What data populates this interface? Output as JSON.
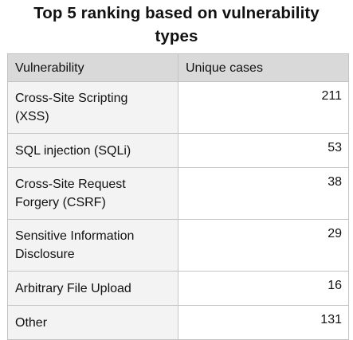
{
  "title_line1": "Top 5 ranking based on vulnerability",
  "title_line2": "types",
  "chart_data": {
    "type": "table",
    "title": "Top 5 ranking based on vulnerability types",
    "columns": [
      "Vulnerability",
      "Unique cases"
    ],
    "rows": [
      {
        "name_lines": [
          "Cross-Site Scripting",
          "(XSS)"
        ],
        "value": "211"
      },
      {
        "name_lines": [
          "SQL injection (SQLi)"
        ],
        "value": "53"
      },
      {
        "name_lines": [
          "Cross-Site Request",
          "Forgery (CSRF)"
        ],
        "value": "38"
      },
      {
        "name_lines": [
          "Sensitive Information",
          "Disclosure"
        ],
        "value": "29"
      },
      {
        "name_lines": [
          "Arbitrary File Upload"
        ],
        "value": "16"
      },
      {
        "name_lines": [
          "Other"
        ],
        "value": "131"
      }
    ],
    "header_color": "#d9d9d9",
    "label_cell_color": "#f3f3f3",
    "border_color": "#c4c4c4"
  }
}
